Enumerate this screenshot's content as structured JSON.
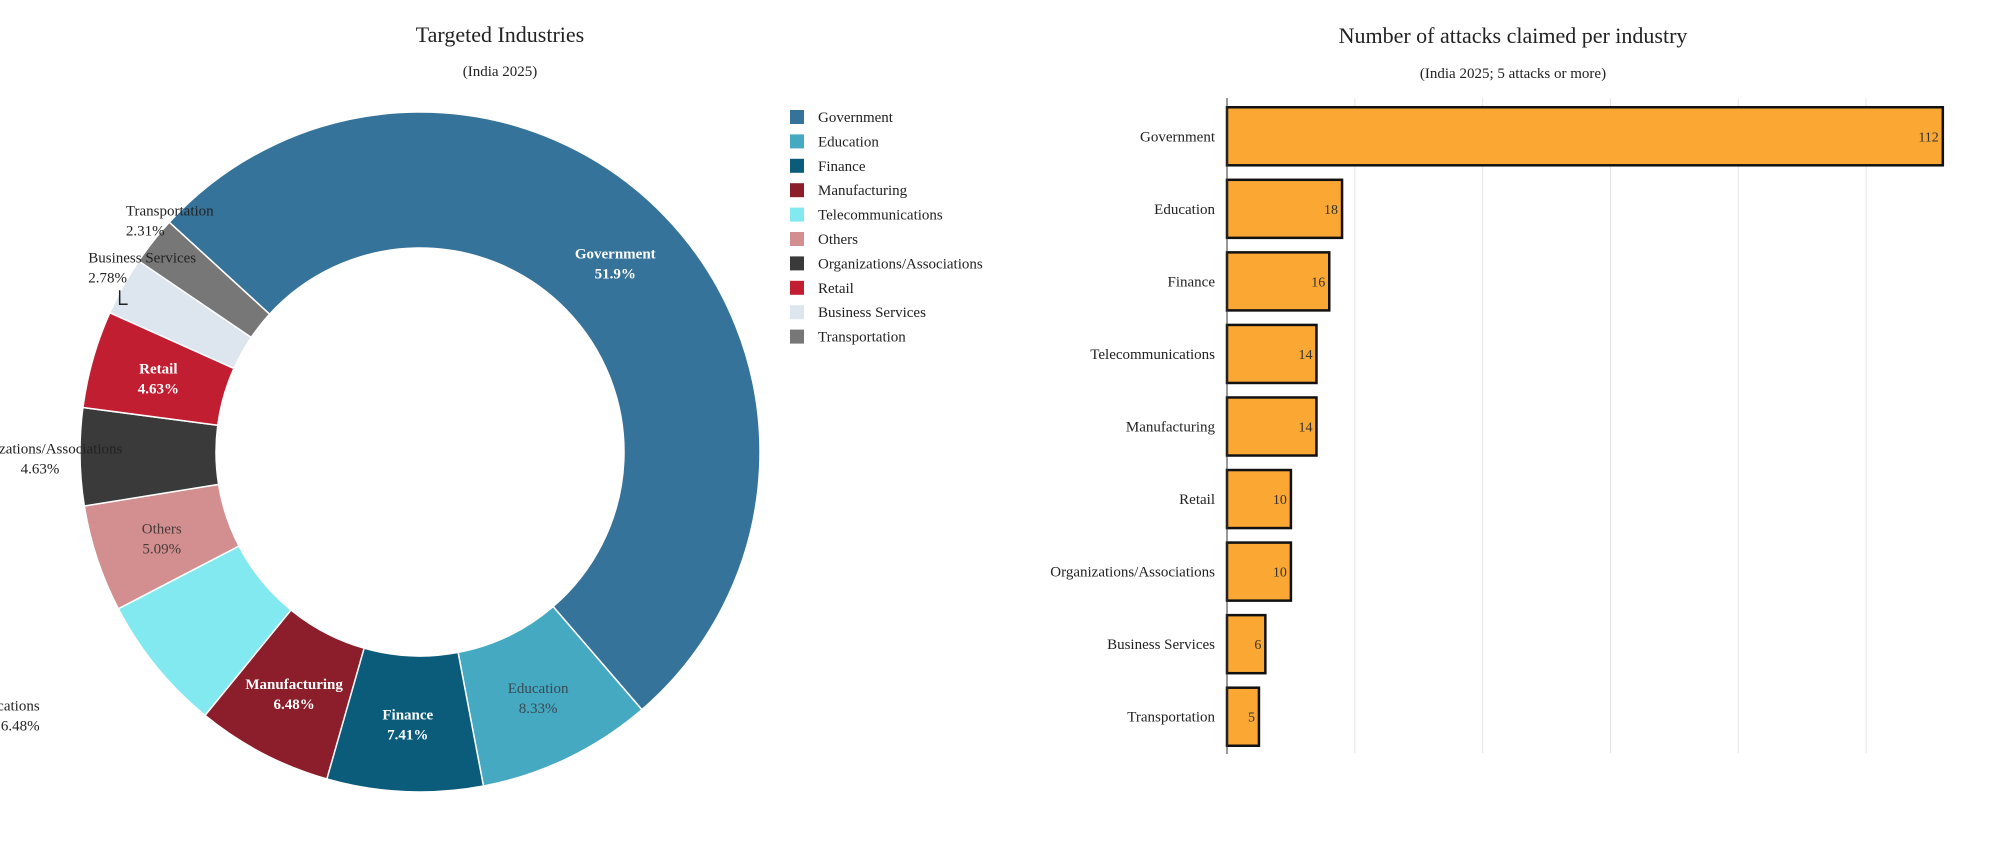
{
  "chart_data": [
    {
      "type": "pie",
      "variant": "donut",
      "title": "Targeted Industries",
      "subtitle": "(India 2025)",
      "legend_position": "right",
      "slices": [
        {
          "name": "Government",
          "value": 51.9,
          "label": "51.9%",
          "color": "#36739b",
          "label_color": "#ffffff",
          "bold": true
        },
        {
          "name": "Education",
          "value": 8.33,
          "label": "8.33%",
          "color": "#44a9c1",
          "label_color": "#3a4a55",
          "bold": false
        },
        {
          "name": "Finance",
          "value": 7.41,
          "label": "7.41%",
          "color": "#0b5b7a",
          "label_color": "#ffffff",
          "bold": true
        },
        {
          "name": "Manufacturing",
          "value": 6.48,
          "label": "6.48%",
          "color": "#8c1e2b",
          "label_color": "#ffffff",
          "bold": true
        },
        {
          "name": "Telecommunications",
          "value": 6.48,
          "label": "6.48%",
          "color": "#83e9f0",
          "label_color": "#222222",
          "bold": false
        },
        {
          "name": "Others",
          "value": 5.09,
          "label": "5.09%",
          "color": "#d38f90",
          "label_color": "#4a3a3a",
          "bold": false
        },
        {
          "name": "Organizations/Associations",
          "value": 4.63,
          "label": "4.63%",
          "color": "#3a3a3a",
          "label_color": "#222222",
          "bold": false
        },
        {
          "name": "Retail",
          "value": 4.63,
          "label": "4.63%",
          "color": "#c21e32",
          "label_color": "#ffffff",
          "bold": true
        },
        {
          "name": "Business Services",
          "value": 2.78,
          "label": "2.78%",
          "color": "#dde6ee",
          "label_color": "#222222",
          "bold": false
        },
        {
          "name": "Transportation",
          "value": 2.31,
          "label": "2.31%",
          "color": "#777777",
          "label_color": "#222222",
          "bold": false
        }
      ],
      "legend": [
        "Government",
        "Education",
        "Finance",
        "Manufacturing",
        "Telecommunications",
        "Others",
        "Organizations/Associations",
        "Retail",
        "Business Services",
        "Transportation"
      ]
    },
    {
      "type": "bar",
      "orientation": "horizontal",
      "title": "Number of attacks claimed per industry",
      "subtitle": "(India 2025; 5 attacks or more)",
      "categories": [
        "Government",
        "Education",
        "Finance",
        "Telecommunications",
        "Manufacturing",
        "Retail",
        "Organizations/Associations",
        "Business Services",
        "Transportation"
      ],
      "values": [
        112,
        18,
        16,
        14,
        14,
        10,
        10,
        6,
        5
      ],
      "xlim": [
        0,
        115
      ],
      "grid": true,
      "bar_color": "#fba733",
      "bar_edge_color": "#111111"
    }
  ]
}
